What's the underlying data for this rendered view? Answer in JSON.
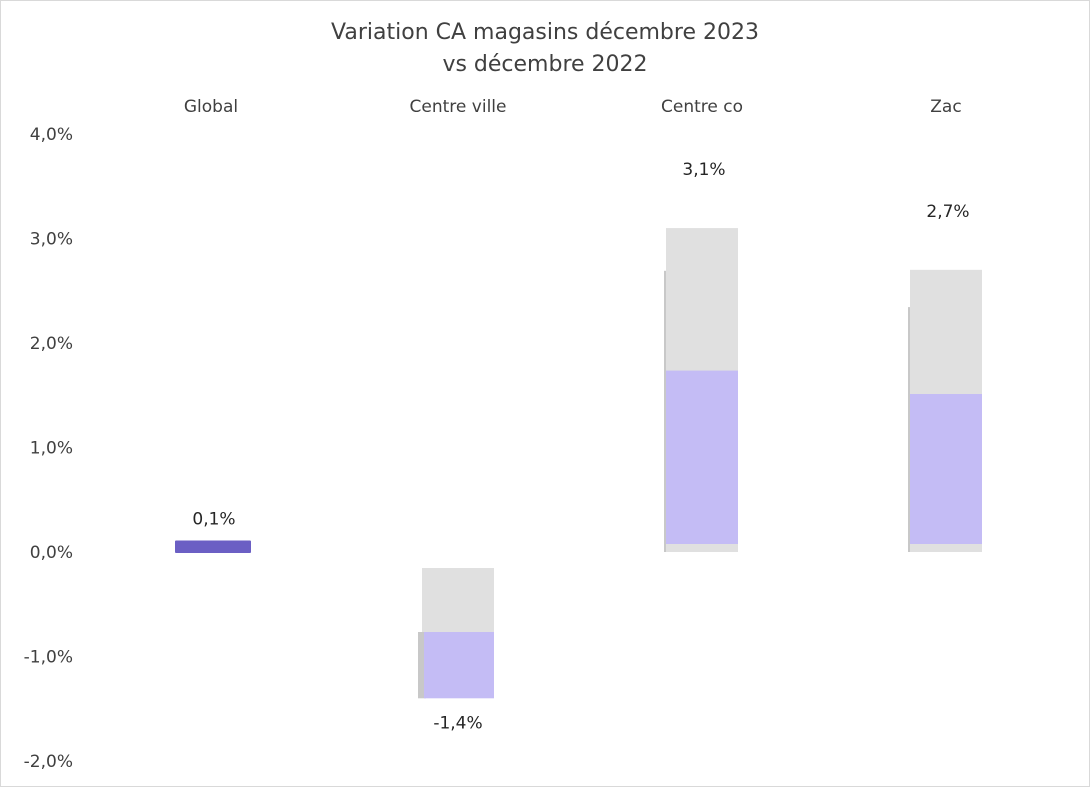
{
  "chart_data": {
    "type": "bar",
    "title_line1": "Variation CA magasins décembre 2023",
    "title_line2": "vs décembre 2022",
    "categories": [
      "Global",
      "Centre ville",
      "Centre co",
      "Zac"
    ],
    "values": [
      0.1,
      -1.4,
      3.1,
      2.7
    ],
    "value_labels": [
      "0,1%",
      "-1,4%",
      "3,1%",
      "2,7%"
    ],
    "ylim": [
      -2.0,
      4.0
    ],
    "yticks": [
      4.0,
      3.0,
      2.0,
      1.0,
      0.0,
      -1.0,
      -2.0
    ],
    "ytick_labels": [
      "4,0%",
      "3,0%",
      "2,0%",
      "1,0%",
      "0,0%",
      "-1,0%",
      "-2,0%"
    ],
    "category_label_position": "top",
    "grid": false,
    "legend": false,
    "colors": {
      "main_bar": "#6b5fc4",
      "bar_fill": "#c4bcf5",
      "bar_shadow": "#e0e0e0",
      "bar_edge": "#c8c8c8"
    }
  }
}
